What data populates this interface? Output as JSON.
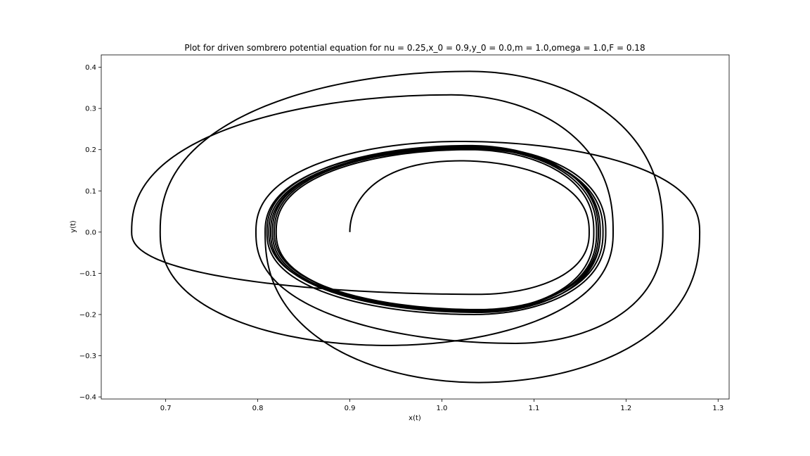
{
  "chart_data": {
    "type": "line",
    "title": "Plot for driven sombrero potential equation for nu = 0.25,x_0 = 0.9,y_0 = 0.0,m = 1.0,omega = 1.0,F = 0.18",
    "xlabel": "x(t)",
    "ylabel": "y(t)",
    "xlim": [
      0.63,
      1.312
    ],
    "ylim": [
      -0.405,
      0.43
    ],
    "xticks": [
      0.7,
      0.8,
      0.9,
      1.0,
      1.1,
      1.2,
      1.3
    ],
    "xtick_labels": [
      "0.7",
      "0.8",
      "0.9",
      "1.0",
      "1.1",
      "1.2",
      "1.3"
    ],
    "yticks": [
      -0.4,
      -0.3,
      -0.2,
      -0.1,
      0.0,
      0.1,
      0.2,
      0.3,
      0.4
    ],
    "ytick_labels": [
      "−0.4",
      "−0.3",
      "−0.2",
      "−0.1",
      "0.0",
      "0.1",
      "0.2",
      "0.3",
      "0.4"
    ],
    "grid": false,
    "line_color": "#000000",
    "series": [
      {
        "start": [
          0.9,
          0.0
        ],
        "start_apex": [
          0.921,
          0.07
        ],
        "loops": [
          {
            "xmin": 0.828,
            "xmax": 1.16,
            "xpeak": 1.02,
            "ytop": 0.173,
            "ybot": -0.151,
            "xbotpeak": 1.04
          },
          {
            "xmin": 0.663,
            "xmax": 1.186,
            "xpeak": 1.01,
            "ytop": 0.333,
            "ybot": -0.275,
            "xbotpeak": 0.94
          },
          {
            "xmin": 0.694,
            "xmax": 1.24,
            "xpeak": 1.03,
            "ytop": 0.39,
            "ybot": -0.27,
            "xbotpeak": 1.08
          },
          {
            "xmin": 0.798,
            "xmax": 1.28,
            "xpeak": 1.02,
            "ytop": 0.22,
            "ybot": -0.365,
            "xbotpeak": 1.04
          },
          {
            "xmin": 0.808,
            "xmax": 1.178,
            "xpeak": 1.03,
            "ytop": 0.208,
            "ybot": -0.2,
            "xbotpeak": 1.035
          },
          {
            "xmin": 0.81,
            "xmax": 1.17,
            "xpeak": 1.03,
            "ytop": 0.21,
            "ybot": -0.19,
            "xbotpeak": 1.04
          },
          {
            "xmin": 0.812,
            "xmax": 1.172,
            "xpeak": 1.03,
            "ytop": 0.205,
            "ybot": -0.195,
            "xbotpeak": 1.04
          },
          {
            "xmin": 0.814,
            "xmax": 1.175,
            "xpeak": 1.03,
            "ytop": 0.203,
            "ybot": -0.192,
            "xbotpeak": 1.04
          },
          {
            "xmin": 0.816,
            "xmax": 1.172,
            "xpeak": 1.03,
            "ytop": 0.207,
            "ybot": -0.188,
            "xbotpeak": 1.04
          },
          {
            "xmin": 0.818,
            "xmax": 1.168,
            "xpeak": 1.03,
            "ytop": 0.204,
            "ybot": -0.191,
            "xbotpeak": 1.04
          },
          {
            "xmin": 0.82,
            "xmax": 1.165,
            "xpeak": 1.03,
            "ytop": 0.2,
            "ybot": -0.19,
            "xbotpeak": 1.04
          }
        ],
        "end": [
          1.13,
          0.0
        ]
      }
    ]
  }
}
